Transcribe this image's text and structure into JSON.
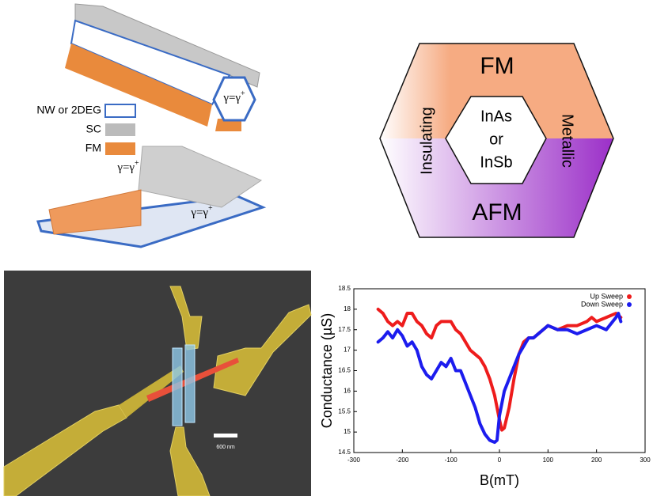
{
  "schematic": {
    "gamma_wire": {
      "base": "γ=γ",
      "sup": "+"
    },
    "gamma_top": {
      "base": "γ=γ",
      "sup": "+"
    },
    "gamma_side": {
      "base": "γ=γ",
      "sup": "+"
    },
    "legend": [
      "NW or 2DEG",
      "SC",
      "FM"
    ]
  },
  "phase_diagram": {
    "top": "FM",
    "bottom": "AFM",
    "left": "Insulating",
    "right": "Metallic",
    "center": [
      "InAs",
      "or",
      "InSb"
    ]
  },
  "device_image": {
    "scale_bar": "600 nm"
  },
  "chart_data": {
    "type": "line",
    "x_label": "B(mT)",
    "y_label": "Conductance (µS)",
    "xlim": [
      -300,
      300
    ],
    "xticks": [
      -300,
      -200,
      -100,
      0,
      100,
      200,
      300
    ],
    "ylim": [
      14.5,
      18.5
    ],
    "yticks": [
      14.5,
      15,
      15.5,
      16,
      16.5,
      17,
      17.5,
      18,
      18.5
    ],
    "series": [
      {
        "name": "Up Sweep",
        "color": "#ee1c1c",
        "x": [
          -250,
          -240,
          -230,
          -220,
          -210,
          -200,
          -190,
          -180,
          -170,
          -160,
          -150,
          -140,
          -130,
          -120,
          -110,
          -100,
          -90,
          -80,
          -70,
          -60,
          -50,
          -40,
          -30,
          -20,
          -10,
          0,
          5,
          10,
          20,
          30,
          40,
          50,
          60,
          70,
          80,
          90,
          100,
          120,
          140,
          160,
          180,
          190,
          200,
          220,
          240,
          250
        ],
        "values": [
          18.0,
          17.9,
          17.7,
          17.6,
          17.7,
          17.6,
          17.9,
          17.9,
          17.7,
          17.6,
          17.4,
          17.3,
          17.6,
          17.7,
          17.7,
          17.7,
          17.5,
          17.4,
          17.2,
          17.0,
          16.9,
          16.8,
          16.6,
          16.3,
          15.9,
          15.3,
          15.05,
          15.1,
          15.6,
          16.3,
          16.9,
          17.2,
          17.3,
          17.3,
          17.4,
          17.5,
          17.6,
          17.5,
          17.6,
          17.6,
          17.7,
          17.8,
          17.7,
          17.8,
          17.9,
          17.8
        ]
      },
      {
        "name": "Down Sweep",
        "color": "#1c1cee",
        "x": [
          -250,
          -240,
          -230,
          -220,
          -210,
          -200,
          -190,
          -180,
          -170,
          -160,
          -150,
          -140,
          -130,
          -120,
          -110,
          -100,
          -90,
          -80,
          -70,
          -60,
          -50,
          -40,
          -30,
          -20,
          -10,
          -5,
          0,
          10,
          20,
          30,
          40,
          50,
          60,
          70,
          80,
          90,
          100,
          120,
          140,
          160,
          180,
          200,
          220,
          240,
          245,
          250
        ],
        "values": [
          17.2,
          17.3,
          17.45,
          17.3,
          17.5,
          17.35,
          17.1,
          17.2,
          17.0,
          16.6,
          16.4,
          16.3,
          16.5,
          16.7,
          16.6,
          16.8,
          16.5,
          16.5,
          16.2,
          15.9,
          15.6,
          15.2,
          14.95,
          14.8,
          14.75,
          14.8,
          15.4,
          16.0,
          16.3,
          16.6,
          16.9,
          17.1,
          17.3,
          17.3,
          17.4,
          17.5,
          17.6,
          17.5,
          17.5,
          17.4,
          17.5,
          17.6,
          17.5,
          17.8,
          17.9,
          17.7
        ]
      }
    ],
    "legend": "top-right"
  }
}
